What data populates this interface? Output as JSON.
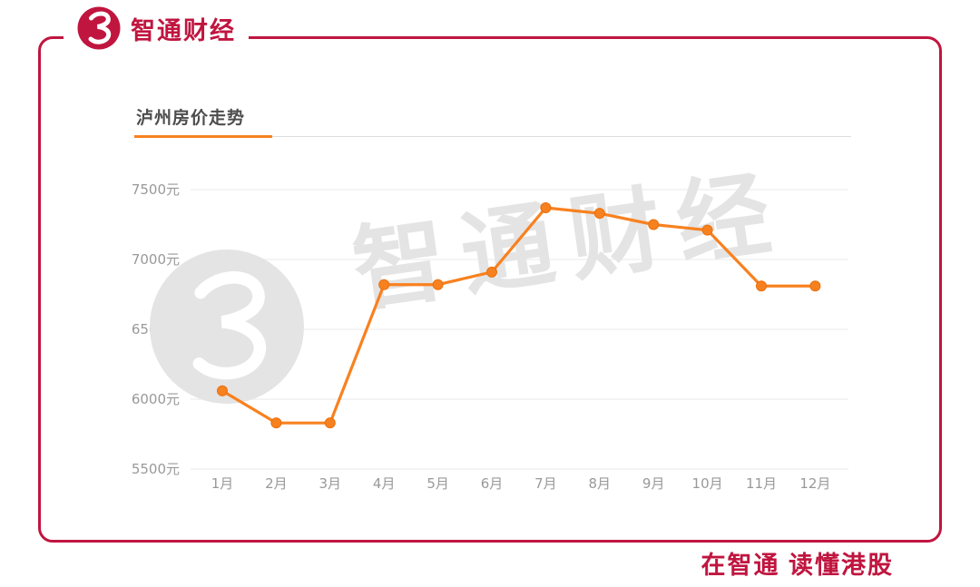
{
  "brand": {
    "name": "智通财经",
    "footer_slogan": "在智通  读懂港股"
  },
  "watermark": {
    "text": "智通财经"
  },
  "colors": {
    "brand_red": "#c0153f",
    "line_orange": "#f8811f",
    "point_stroke": "#e8700e",
    "grid": "#e8e8e8",
    "axis_text": "#999999",
    "title_text": "#4d4d4d",
    "watermark_gray": "#e4e4e4"
  },
  "chart_data": {
    "type": "line",
    "title": "泸州房价走势",
    "categories": [
      "1月",
      "2月",
      "3月",
      "4月",
      "5月",
      "6月",
      "7月",
      "8月",
      "9月",
      "10月",
      "11月",
      "12月"
    ],
    "values": [
      6060,
      5830,
      5830,
      6820,
      6820,
      6910,
      7370,
      7330,
      7250,
      7210,
      6810,
      6810
    ],
    "unit": "元",
    "xlabel": "",
    "ylabel": "",
    "ylim": [
      5500,
      7500
    ],
    "yticks": [
      7500,
      7000,
      6500,
      6000,
      5500
    ],
    "grid": true,
    "legend": "none",
    "line_color": "#f8811f"
  }
}
